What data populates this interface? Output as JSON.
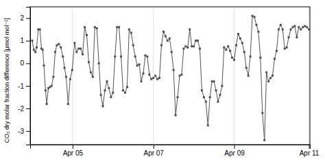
{
  "chart_data": {
    "type": "line",
    "ylabel": "CO₂ dry molar fraction difference [μmol mol⁻¹]",
    "x": [
      0.0,
      0.08,
      0.16,
      0.22,
      0.3,
      0.38,
      0.46,
      0.52,
      0.58,
      0.66,
      0.72,
      0.8,
      0.88,
      0.96,
      1.05,
      1.14,
      1.22,
      1.32,
      1.42,
      1.52,
      1.6,
      1.68,
      1.78,
      1.88,
      1.98,
      2.1,
      2.2,
      2.3,
      2.4,
      2.5,
      2.6,
      2.7,
      2.8,
      2.9,
      3.0,
      3.1,
      3.2,
      3.3,
      3.4,
      3.5,
      3.6,
      3.7,
      3.8,
      3.9,
      4.0,
      4.1,
      4.2,
      4.3,
      4.4,
      4.5,
      4.6,
      4.7,
      4.8,
      4.9,
      5.0,
      5.1,
      5.2,
      5.3,
      5.4,
      5.5,
      5.6,
      5.7,
      5.8,
      5.9,
      6.0,
      6.1,
      6.2,
      6.3,
      6.4,
      6.5,
      6.6,
      6.7,
      6.8,
      6.9,
      7.0,
      7.1,
      7.2,
      7.3,
      7.4,
      7.5,
      7.6,
      7.7,
      7.8,
      7.9,
      8.0,
      8.1,
      8.2,
      8.3,
      8.4,
      8.5,
      8.6,
      8.7,
      8.8,
      8.9,
      9.0,
      9.1,
      9.2,
      9.3,
      9.4,
      9.5,
      9.6,
      9.7,
      9.8,
      9.9,
      10.0,
      10.1,
      10.2,
      10.3,
      10.4,
      10.5,
      10.6,
      10.7,
      10.8,
      10.9,
      11.0,
      11.1,
      11.2,
      11.3,
      11.4,
      11.5,
      11.6,
      11.7,
      11.8,
      11.9,
      12.0,
      12.1,
      12.2,
      12.3,
      12.4,
      12.5,
      12.6,
      12.7,
      12.8,
      12.9,
      13.0,
      13.1,
      13.2,
      13.3,
      13.4,
      13.5,
      13.6,
      13.7
    ],
    "values": [
      1.0,
      0.6,
      0.5,
      0.7,
      1.5,
      1.5,
      0.65,
      0.6,
      -0.1,
      -1.2,
      -1.8,
      -1.1,
      -1.05,
      -1.0,
      -0.6,
      0.5,
      0.8,
      0.85,
      0.7,
      0.3,
      -0.2,
      -0.6,
      -1.8,
      -0.7,
      -0.3,
      0.9,
      0.5,
      0.65,
      0.65,
      0.4,
      1.6,
      1.25,
      0.05,
      -0.4,
      -0.6,
      1.6,
      1.55,
      0.0,
      -1.4,
      -1.9,
      -1.2,
      -0.8,
      -1.1,
      -1.5,
      -1.3,
      0.3,
      1.6,
      1.6,
      0.3,
      -1.2,
      -1.3,
      -1.05,
      1.5,
      1.35,
      0.8,
      0.3,
      -0.1,
      -0.05,
      -0.8,
      -0.45,
      0.35,
      0.3,
      -0.5,
      -0.7,
      -0.65,
      -0.55,
      -0.7,
      -0.65,
      0.8,
      1.4,
      1.2,
      1.0,
      1.1,
      0.5,
      -0.3,
      -2.3,
      -1.5,
      -0.55,
      -0.5,
      0.65,
      0.75,
      0.7,
      1.5,
      0.75,
      0.75,
      1.0,
      1.0,
      0.65,
      -1.2,
      -1.5,
      -1.7,
      -2.75,
      -1.5,
      -0.8,
      -0.8,
      -1.2,
      -1.7,
      -1.4,
      -1.0,
      0.7,
      0.6,
      0.75,
      0.55,
      0.25,
      0.15,
      0.8,
      1.3,
      1.1,
      0.9,
      0.5,
      -0.2,
      -0.55,
      0.3,
      2.1,
      2.05,
      1.7,
      1.4,
      0.25,
      -2.2,
      -3.4,
      -0.4,
      -0.8,
      -0.65,
      -0.55,
      0.2,
      0.55,
      1.5,
      1.7,
      1.5,
      0.65,
      0.7,
      1.15,
      1.5,
      1.6,
      1.65,
      1.15,
      1.6,
      1.5,
      1.6,
      1.65,
      1.6,
      1.5
    ],
    "color": "#505050",
    "marker": "square",
    "xlim": [
      -0.1,
      13.75
    ],
    "xticks": [
      {
        "value": 2.0,
        "label": "Apr 05"
      },
      {
        "value": 6.0,
        "label": "Apr 07"
      },
      {
        "value": 10.0,
        "label": "Apr 09"
      },
      {
        "value": 13.7,
        "label": "Apr 11"
      }
    ],
    "ylim": [
      -3.6,
      2.5
    ],
    "yticks": [
      -3,
      -2,
      -1,
      0,
      1,
      2
    ],
    "grid": "x"
  }
}
